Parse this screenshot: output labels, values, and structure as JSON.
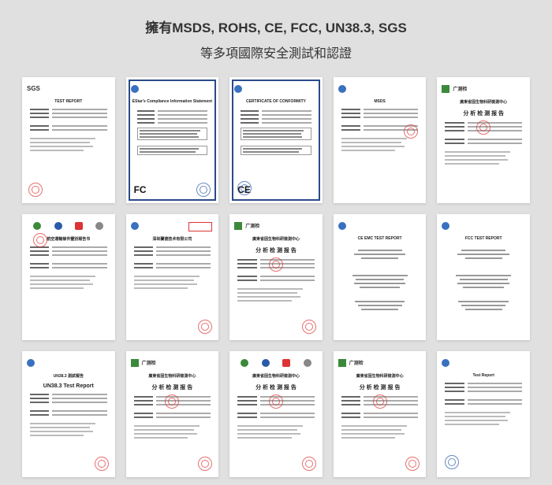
{
  "headline_line1": "擁有MSDS, ROHS, CE, FCC, UN38.3, SGS",
  "headline_line2": "等多項國際安全測試和認證",
  "colors": {
    "page_bg": "#e0e0e0",
    "cert_bg": "#ffffff",
    "text": "#333333",
    "border_blue": "#2a4a8a",
    "stamp_red": "#d33333",
    "stamp_blue": "#2a5aaa",
    "logo_blue": "#3a70c0",
    "logo_green": "#3a8a3a"
  },
  "certs": [
    {
      "brand": "SGS",
      "title": "TEST REPORT",
      "style": "plain",
      "stamps": [
        "red-bl"
      ]
    },
    {
      "brand": "",
      "title": "EStar's Compliance Information Statement",
      "style": "bordered",
      "mark": "FC",
      "stamps": [
        "blue-br"
      ]
    },
    {
      "brand": "",
      "title": "CERTIFICATE OF CONFORMITY",
      "style": "bordered",
      "mark": "CE",
      "stamps": [
        "blue-bl"
      ]
    },
    {
      "brand": "",
      "title": "MSDS",
      "style": "plain",
      "stamps": [
        "red-mr"
      ]
    },
    {
      "brand": "广测检",
      "title": "廣東省固生物科研檢測中心\n分 析 检 测 报 告",
      "style": "plain",
      "stamps": [
        "red-mid"
      ]
    },
    {
      "brand": "multi",
      "title": "航空運輸條件鑒別報告书",
      "style": "plain",
      "stamps": [
        "red-top"
      ]
    },
    {
      "brand": "",
      "title": "深圳蘭德技术有限公司",
      "style": "plain",
      "stamps": [
        "red-br"
      ],
      "redbox": true
    },
    {
      "brand": "广测检",
      "title": "廣東省固生物科研檢測中心\n分 析 检 测 报 告",
      "style": "plain",
      "stamps": [
        "red-mid",
        "red-br"
      ]
    },
    {
      "brand": "",
      "title": "CE EMC TEST REPORT",
      "style": "centered",
      "stamps": []
    },
    {
      "brand": "",
      "title": "FCC TEST REPORT",
      "style": "centered",
      "stamps": []
    },
    {
      "brand": "",
      "title": "UN38.3 測試報告\nUN38.3 Test Report",
      "style": "plain",
      "stamps": [
        "red-br"
      ]
    },
    {
      "brand": "广测检",
      "title": "廣東省固生物科研檢測中心\n分 析 检 测 报 告",
      "style": "plain",
      "stamps": [
        "red-mid",
        "red-br"
      ]
    },
    {
      "brand": "广测检",
      "title": "廣東省固生物科研檢測中心\n分 析 检 测 报 告",
      "style": "plain",
      "multi_top": true,
      "stamps": [
        "red-mid",
        "red-br"
      ]
    },
    {
      "brand": "广测检",
      "title": "廣東省固生物科研檢測中心\n分 析 检 测 报 告",
      "style": "plain",
      "stamps": [
        "red-mid",
        "red-br"
      ]
    },
    {
      "brand": "",
      "title": "Test Report",
      "style": "plain",
      "stamps": [
        "blue-bl"
      ]
    }
  ]
}
